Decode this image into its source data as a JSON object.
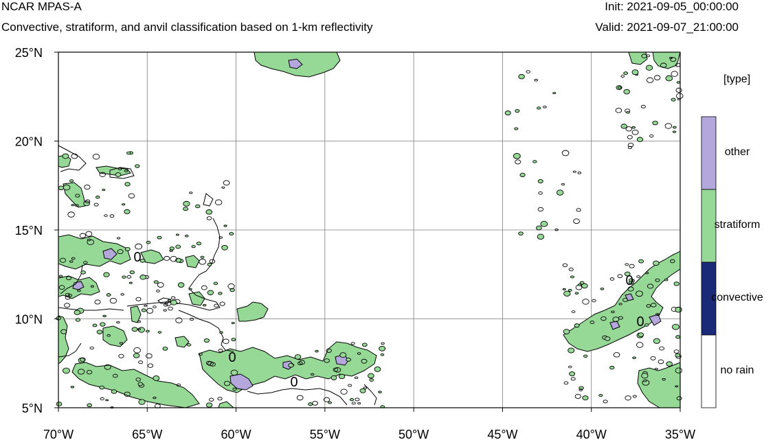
{
  "header": {
    "model": "NCAR MPAS-A",
    "description": "Convective, stratiform, and anvil classification based on 1-km reflectivity",
    "init": "Init: 2021-09-05_00:00:00",
    "valid": "Valid: 2021-09-07_21:00:00"
  },
  "map": {
    "lon_range": [
      -70,
      -35
    ],
    "lat_range": [
      5,
      25
    ],
    "lon_ticks": [
      "70°W",
      "65°W",
      "60°W",
      "55°W",
      "50°W",
      "45°W",
      "40°W",
      "35°W"
    ],
    "lat_ticks": [
      "5°N",
      "10°N",
      "15°N",
      "20°N",
      "25°N"
    ],
    "contour_labels": [
      "0",
      "0",
      "0",
      "0",
      "0"
    ],
    "grid": true
  },
  "legend": {
    "title": "[type]",
    "items": [
      {
        "label": "other",
        "color": "#b3a7dc"
      },
      {
        "label": "stratiform",
        "color": "#96d896"
      },
      {
        "label": "convective",
        "color": "#1a2a78"
      },
      {
        "label": "no rain",
        "color": "#ffffff"
      }
    ]
  },
  "colors": {
    "stratiform": "#96d896",
    "other": "#b3a7dc",
    "convective": "#1a2a78",
    "contour": "#000000",
    "grid": "#7a7a7a"
  }
}
